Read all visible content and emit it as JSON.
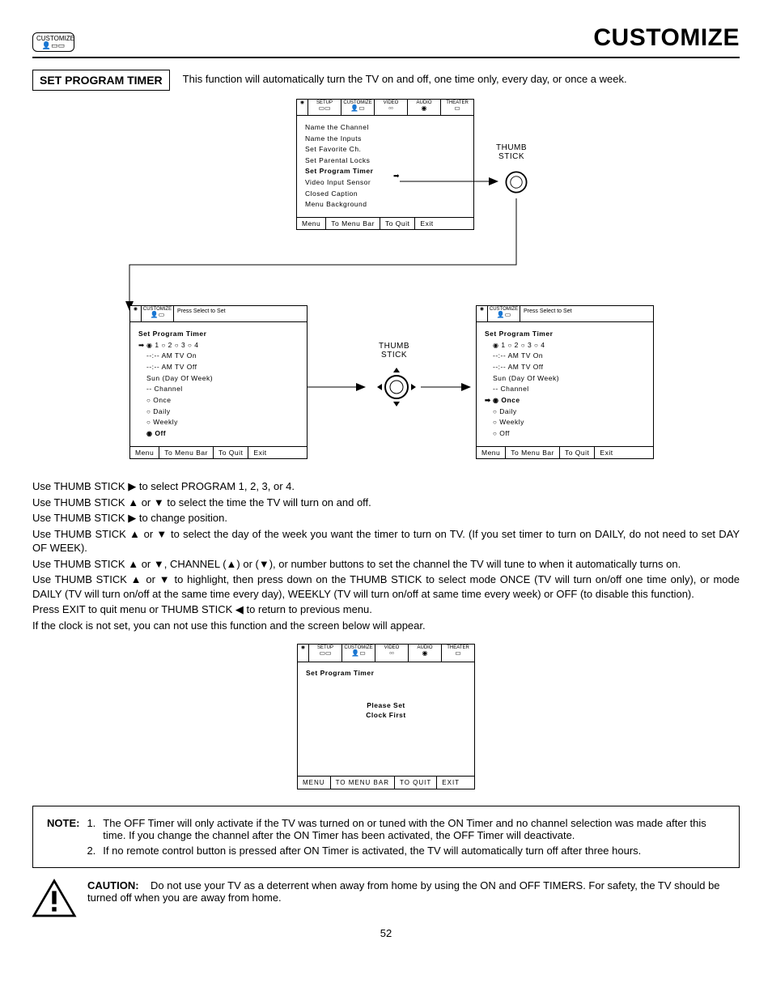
{
  "badge": {
    "label": "CUSTOMIZE",
    "icons": "👤▭▭"
  },
  "page_title": "CUSTOMIZE",
  "section": {
    "label": "SET PROGRAM TIMER",
    "desc": "This function will automatically turn the TV on and off, one time only, every day, or once a week."
  },
  "tabs": {
    "setup": "SETUP",
    "customize": "CUSTOMIZE",
    "video": "VIDEO",
    "audio": "AUDIO",
    "theater": "THEATER"
  },
  "menu1": {
    "items": [
      "Name the Channel",
      "Name the Inputs",
      "Set Favorite Ch.",
      "Set Parental Locks",
      "Set Program Timer",
      "Video Input Sensor",
      "Closed Caption",
      "Menu Background"
    ],
    "bold_index": 4,
    "footer": [
      "Menu",
      "To Menu Bar",
      "To Quit",
      "Exit"
    ]
  },
  "thumb_label": "THUMB\nSTICK",
  "press_select": "Press Select to Set",
  "menu2": {
    "title": "Set Program Timer",
    "programs_selected": 0,
    "lines": [
      "--:-- AM TV On",
      "--:-- AM TV Off",
      "Sun (Day Of Week)",
      "-- Channel"
    ],
    "modes": [
      "Once",
      "Daily",
      "Weekly",
      "Off"
    ],
    "arrow_row": 0,
    "selected_mode": 3,
    "footer": [
      "Menu",
      "To Menu Bar",
      "To Quit",
      "Exit"
    ]
  },
  "menu3": {
    "title": "Set Program Timer",
    "programs_selected": 0,
    "lines": [
      "--:-- AM TV On",
      "--:-- AM TV Off",
      "Sun (Day Of Week)",
      "-- Channel"
    ],
    "modes": [
      "Once",
      "Daily",
      "Weekly",
      "Off"
    ],
    "arrow_mode_row": 0,
    "selected_mode": 0,
    "footer": [
      "Menu",
      "To Menu Bar",
      "To Quit",
      "Exit"
    ]
  },
  "instructions": [
    "Use THUMB STICK ▶ to select PROGRAM 1, 2, 3, or 4.",
    "Use THUMB STICK ▲ or ▼ to select the time the TV will turn on and off.",
    "Use THUMB STICK ▶ to change position.",
    "Use THUMB STICK ▲ or ▼ to select the day of the week you want the timer to turn on TV. (If you set timer to turn on DAILY, do not need to set DAY OF WEEK).",
    "Use THUMB STICK ▲ or ▼, CHANNEL (▲) or (▼), or number buttons to set the channel the TV will tune to when it automatically turns on.",
    "Use THUMB STICK ▲ or ▼ to highlight, then press down on the THUMB STICK to select mode ONCE (TV will turn on/off one time only), or mode DAILY (TV will turn on/off at the same time every day), WEEKLY (TV will turn on/off at same time every week) or OFF (to disable this function).",
    "Press EXIT to quit menu or THUMB STICK ◀ to return to previous menu.",
    "If the clock is not set, you can not use this function and the screen below will appear."
  ],
  "clock_box": {
    "title": "Set Program Timer",
    "msg": "Please Set\nClock First",
    "footer": [
      "MENU",
      "TO MENU BAR",
      "TO QUIT",
      "EXIT"
    ]
  },
  "note": {
    "label": "NOTE:",
    "items": [
      "The OFF Timer will only activate if the TV was turned on or tuned with the ON Timer and no channel selection was made after this time.  If you change the channel after the ON Timer has been activated, the OFF Timer will deactivate.",
      "If no remote control button is pressed after ON Timer is activated, the TV will automatically turn off after three hours."
    ]
  },
  "caution": {
    "label": "CAUTION:",
    "text": "Do not use your TV as a deterrent when away from home by using the ON and OFF TIMERS.  For safety, the TV should be turned off when you are away from home."
  },
  "page_number": "52",
  "colors": {
    "text": "#000000",
    "bg": "#ffffff"
  }
}
